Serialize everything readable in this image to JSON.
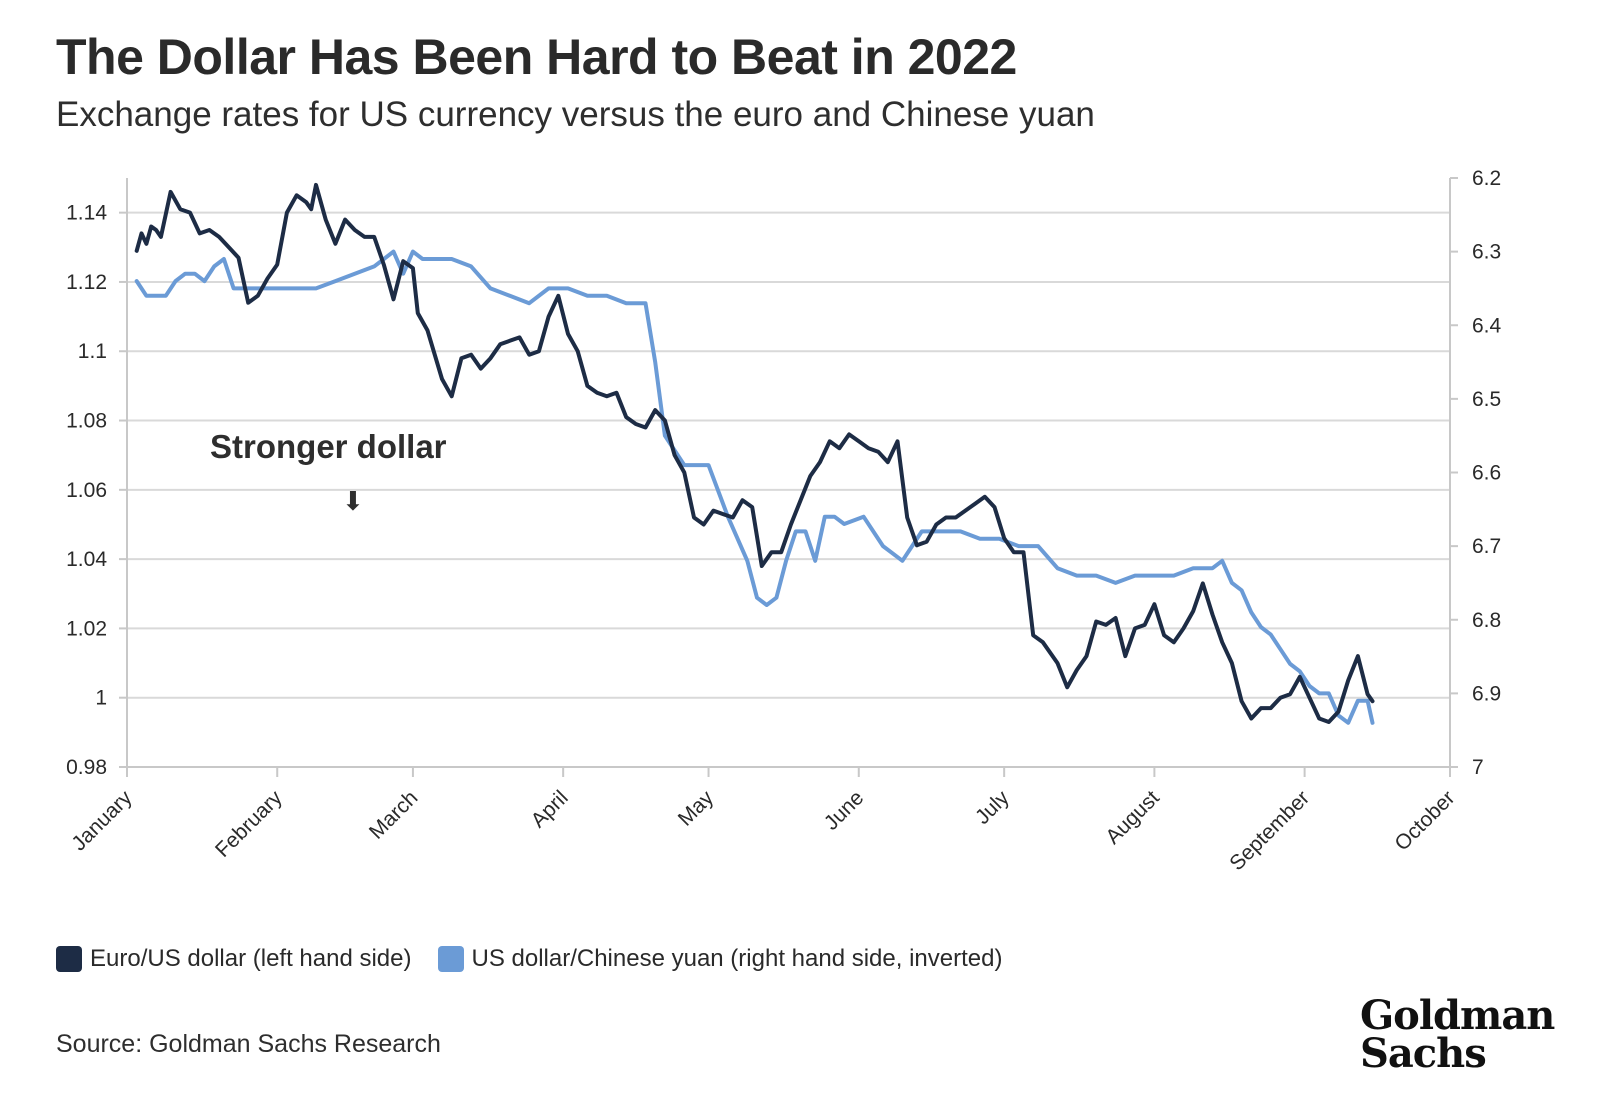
{
  "title": "The Dollar Has Been Hard to Beat in 2022",
  "subtitle": "Exchange rates for US currency versus the euro and Chinese yuan",
  "annotation": {
    "text": "Stronger dollar",
    "arrow": "⬇"
  },
  "legend": [
    {
      "label": "Euro/US dollar (left hand side)",
      "color": "#1d2c45"
    },
    {
      "label": "US dollar/Chinese yuan (right hand side, inverted)",
      "color": "#6b9bd6"
    }
  ],
  "source": "Source: Goldman Sachs Research",
  "logo": {
    "line1": "Goldman",
    "line2": "Sachs"
  },
  "colors": {
    "eurusd": "#1d2c45",
    "usdcny": "#6b9bd6",
    "grid": "#d9d9d9",
    "axis": "#c8c8c8"
  },
  "chart_data": {
    "type": "line",
    "x_axis": {
      "ticks": [
        "January",
        "February",
        "March",
        "April",
        "May",
        "June",
        "July",
        "August",
        "September",
        "October"
      ],
      "range_days": [
        0,
        273
      ]
    },
    "y_left": {
      "ticks": [
        "1.14",
        "1.12",
        "1.1",
        "1.08",
        "1.06",
        "1.04",
        "1.02",
        "1",
        "0.98"
      ],
      "range": [
        0.98,
        1.15
      ]
    },
    "y_right": {
      "ticks": [
        "6.2",
        "6.3",
        "6.4",
        "6.5",
        "6.6",
        "6.7",
        "6.8",
        "6.9",
        "7"
      ],
      "range": [
        6.2,
        7.0
      ],
      "inverted": true
    },
    "grid": true,
    "legend_position": "bottom-left",
    "series": [
      {
        "name": "Euro/US dollar (left hand side)",
        "axis": "left",
        "x": [
          "2022-01-03",
          "2022-01-04",
          "2022-01-05",
          "2022-01-06",
          "2022-01-07",
          "2022-01-08",
          "2022-01-10",
          "2022-01-12",
          "2022-01-14",
          "2022-01-16",
          "2022-01-18",
          "2022-01-20",
          "2022-01-22",
          "2022-01-24",
          "2022-01-26",
          "2022-01-28",
          "2022-01-30",
          "2022-02-01",
          "2022-02-03",
          "2022-02-05",
          "2022-02-07",
          "2022-02-08",
          "2022-02-09",
          "2022-02-11",
          "2022-02-13",
          "2022-02-15",
          "2022-02-17",
          "2022-02-19",
          "2022-02-21",
          "2022-02-23",
          "2022-02-25",
          "2022-02-27",
          "2022-03-01",
          "2022-03-02",
          "2022-03-04",
          "2022-03-07",
          "2022-03-09",
          "2022-03-11",
          "2022-03-13",
          "2022-03-15",
          "2022-03-17",
          "2022-03-19",
          "2022-03-21",
          "2022-03-23",
          "2022-03-25",
          "2022-03-27",
          "2022-03-29",
          "2022-03-31",
          "2022-04-02",
          "2022-04-04",
          "2022-04-06",
          "2022-04-08",
          "2022-04-10",
          "2022-04-12",
          "2022-04-14",
          "2022-04-16",
          "2022-04-18",
          "2022-04-20",
          "2022-04-22",
          "2022-04-24",
          "2022-04-26",
          "2022-04-28",
          "2022-04-30",
          "2022-05-02",
          "2022-05-04",
          "2022-05-06",
          "2022-05-08",
          "2022-05-10",
          "2022-05-12",
          "2022-05-14",
          "2022-05-16",
          "2022-05-18",
          "2022-05-20",
          "2022-05-22",
          "2022-05-24",
          "2022-05-26",
          "2022-05-28",
          "2022-05-30",
          "2022-06-01",
          "2022-06-03",
          "2022-06-05",
          "2022-06-07",
          "2022-06-09",
          "2022-06-11",
          "2022-06-13",
          "2022-06-15",
          "2022-06-17",
          "2022-06-19",
          "2022-06-21",
          "2022-06-23",
          "2022-06-25",
          "2022-06-27",
          "2022-06-29",
          "2022-07-01",
          "2022-07-03",
          "2022-07-05",
          "2022-07-07",
          "2022-07-09",
          "2022-07-12",
          "2022-07-14",
          "2022-07-16",
          "2022-07-18",
          "2022-07-20",
          "2022-07-22",
          "2022-07-24",
          "2022-07-26",
          "2022-07-28",
          "2022-07-30",
          "2022-08-01",
          "2022-08-03",
          "2022-08-05",
          "2022-08-07",
          "2022-08-09",
          "2022-08-11",
          "2022-08-13",
          "2022-08-15",
          "2022-08-17",
          "2022-08-19",
          "2022-08-21",
          "2022-08-23",
          "2022-08-25",
          "2022-08-27",
          "2022-08-29",
          "2022-08-31",
          "2022-09-02",
          "2022-09-04",
          "2022-09-06",
          "2022-09-08",
          "2022-09-10",
          "2022-09-12",
          "2022-09-14",
          "2022-09-15"
        ],
        "values": [
          1.129,
          1.134,
          1.131,
          1.136,
          1.135,
          1.133,
          1.146,
          1.141,
          1.14,
          1.134,
          1.135,
          1.133,
          1.13,
          1.127,
          1.114,
          1.116,
          1.121,
          1.125,
          1.14,
          1.145,
          1.143,
          1.141,
          1.148,
          1.138,
          1.131,
          1.138,
          1.135,
          1.133,
          1.133,
          1.125,
          1.115,
          1.126,
          1.124,
          1.111,
          1.106,
          1.092,
          1.087,
          1.098,
          1.099,
          1.095,
          1.098,
          1.102,
          1.103,
          1.104,
          1.099,
          1.1,
          1.11,
          1.116,
          1.105,
          1.1,
          1.09,
          1.088,
          1.087,
          1.088,
          1.081,
          1.079,
          1.078,
          1.083,
          1.08,
          1.07,
          1.065,
          1.052,
          1.05,
          1.054,
          1.053,
          1.052,
          1.057,
          1.055,
          1.038,
          1.042,
          1.042,
          1.05,
          1.057,
          1.064,
          1.068,
          1.074,
          1.072,
          1.076,
          1.074,
          1.072,
          1.071,
          1.068,
          1.074,
          1.052,
          1.044,
          1.045,
          1.05,
          1.052,
          1.052,
          1.054,
          1.056,
          1.058,
          1.055,
          1.046,
          1.042,
          1.042,
          1.018,
          1.016,
          1.01,
          1.003,
          1.008,
          1.012,
          1.022,
          1.021,
          1.023,
          1.012,
          1.02,
          1.021,
          1.027,
          1.018,
          1.016,
          1.02,
          1.025,
          1.033,
          1.024,
          1.016,
          1.01,
          0.999,
          0.994,
          0.997,
          0.997,
          1.0,
          1.001,
          1.006,
          1.0,
          0.994,
          0.993,
          0.996,
          1.005,
          1.012,
          1.001,
          0.999
        ]
      },
      {
        "name": "US dollar/Chinese yuan (right hand side, inverted)",
        "axis": "right",
        "x": [
          "2022-01-03",
          "2022-01-05",
          "2022-01-07",
          "2022-01-09",
          "2022-01-11",
          "2022-01-13",
          "2022-01-15",
          "2022-01-17",
          "2022-01-19",
          "2022-01-21",
          "2022-01-23",
          "2022-01-25",
          "2022-01-27",
          "2022-01-28",
          "2022-02-01",
          "2022-02-05",
          "2022-02-09",
          "2022-02-13",
          "2022-02-17",
          "2022-02-21",
          "2022-02-25",
          "2022-02-27",
          "2022-03-01",
          "2022-03-03",
          "2022-03-05",
          "2022-03-09",
          "2022-03-13",
          "2022-03-17",
          "2022-03-21",
          "2022-03-25",
          "2022-03-29",
          "2022-04-02",
          "2022-04-06",
          "2022-04-10",
          "2022-04-14",
          "2022-04-18",
          "2022-04-20",
          "2022-04-22",
          "2022-04-24",
          "2022-04-26",
          "2022-04-28",
          "2022-05-01",
          "2022-05-05",
          "2022-05-09",
          "2022-05-11",
          "2022-05-13",
          "2022-05-15",
          "2022-05-17",
          "2022-05-19",
          "2022-05-21",
          "2022-05-23",
          "2022-05-25",
          "2022-05-27",
          "2022-05-29",
          "2022-06-02",
          "2022-06-06",
          "2022-06-10",
          "2022-06-14",
          "2022-06-18",
          "2022-06-22",
          "2022-06-26",
          "2022-06-30",
          "2022-07-04",
          "2022-07-08",
          "2022-07-12",
          "2022-07-16",
          "2022-07-20",
          "2022-07-24",
          "2022-07-28",
          "2022-08-01",
          "2022-08-05",
          "2022-08-09",
          "2022-08-13",
          "2022-08-15",
          "2022-08-17",
          "2022-08-19",
          "2022-08-21",
          "2022-08-23",
          "2022-08-25",
          "2022-08-27",
          "2022-08-29",
          "2022-08-31",
          "2022-09-02",
          "2022-09-04",
          "2022-09-06",
          "2022-09-08",
          "2022-09-10",
          "2022-09-12",
          "2022-09-14",
          "2022-09-15"
        ],
        "values": [
          6.34,
          6.36,
          6.36,
          6.36,
          6.34,
          6.33,
          6.33,
          6.34,
          6.32,
          6.31,
          6.35,
          6.35,
          6.35,
          6.35,
          6.35,
          6.35,
          6.35,
          6.34,
          6.33,
          6.32,
          6.3,
          6.33,
          6.3,
          6.31,
          6.31,
          6.31,
          6.32,
          6.35,
          6.36,
          6.37,
          6.35,
          6.35,
          6.36,
          6.36,
          6.37,
          6.37,
          6.45,
          6.55,
          6.57,
          6.59,
          6.59,
          6.59,
          6.66,
          6.72,
          6.77,
          6.78,
          6.77,
          6.72,
          6.68,
          6.68,
          6.72,
          6.66,
          6.66,
          6.67,
          6.66,
          6.7,
          6.72,
          6.68,
          6.68,
          6.68,
          6.69,
          6.69,
          6.7,
          6.7,
          6.73,
          6.74,
          6.74,
          6.75,
          6.74,
          6.74,
          6.74,
          6.73,
          6.73,
          6.72,
          6.75,
          6.76,
          6.79,
          6.81,
          6.82,
          6.84,
          6.86,
          6.87,
          6.89,
          6.9,
          6.9,
          6.93,
          6.94,
          6.91,
          6.91,
          6.94
        ]
      }
    ]
  }
}
